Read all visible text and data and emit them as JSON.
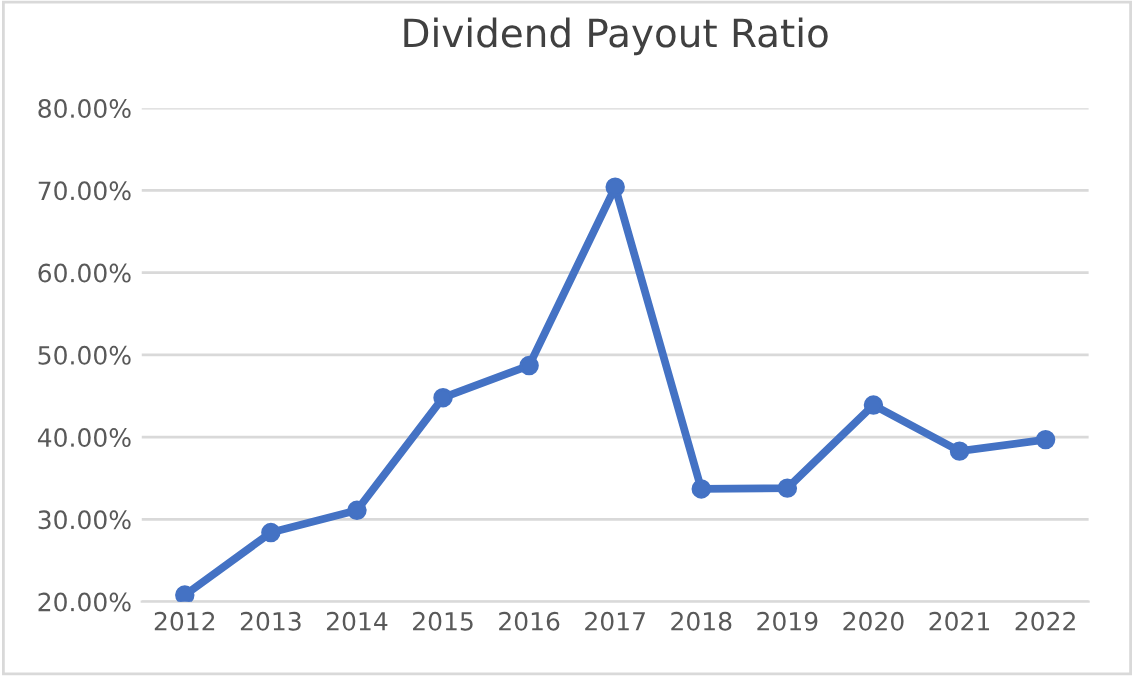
{
  "chart_data": {
    "type": "line",
    "title": "Dividend Payout Ratio",
    "categories": [
      "2012",
      "2013",
      "2014",
      "2015",
      "2016",
      "2017",
      "2018",
      "2019",
      "2020",
      "2021",
      "2022"
    ],
    "series": [
      {
        "color": "#4472c4",
        "values": [
          20.8,
          28.4,
          31.1,
          44.8,
          48.7,
          70.4,
          33.7,
          33.8,
          43.9,
          38.3,
          39.7
        ]
      }
    ],
    "ylim": [
      20,
      80
    ],
    "yticks": [
      {
        "value": 20,
        "label": "20.00%"
      },
      {
        "value": 30,
        "label": "30.00%"
      },
      {
        "value": 40,
        "label": "40.00%"
      },
      {
        "value": 50,
        "label": "50.00%"
      },
      {
        "value": 60,
        "label": "60.00%"
      },
      {
        "value": 70,
        "label": "70.00%"
      },
      {
        "value": 80,
        "label": "80.00%"
      }
    ],
    "grid": "y",
    "marker": "circle",
    "line_style": "solid"
  }
}
